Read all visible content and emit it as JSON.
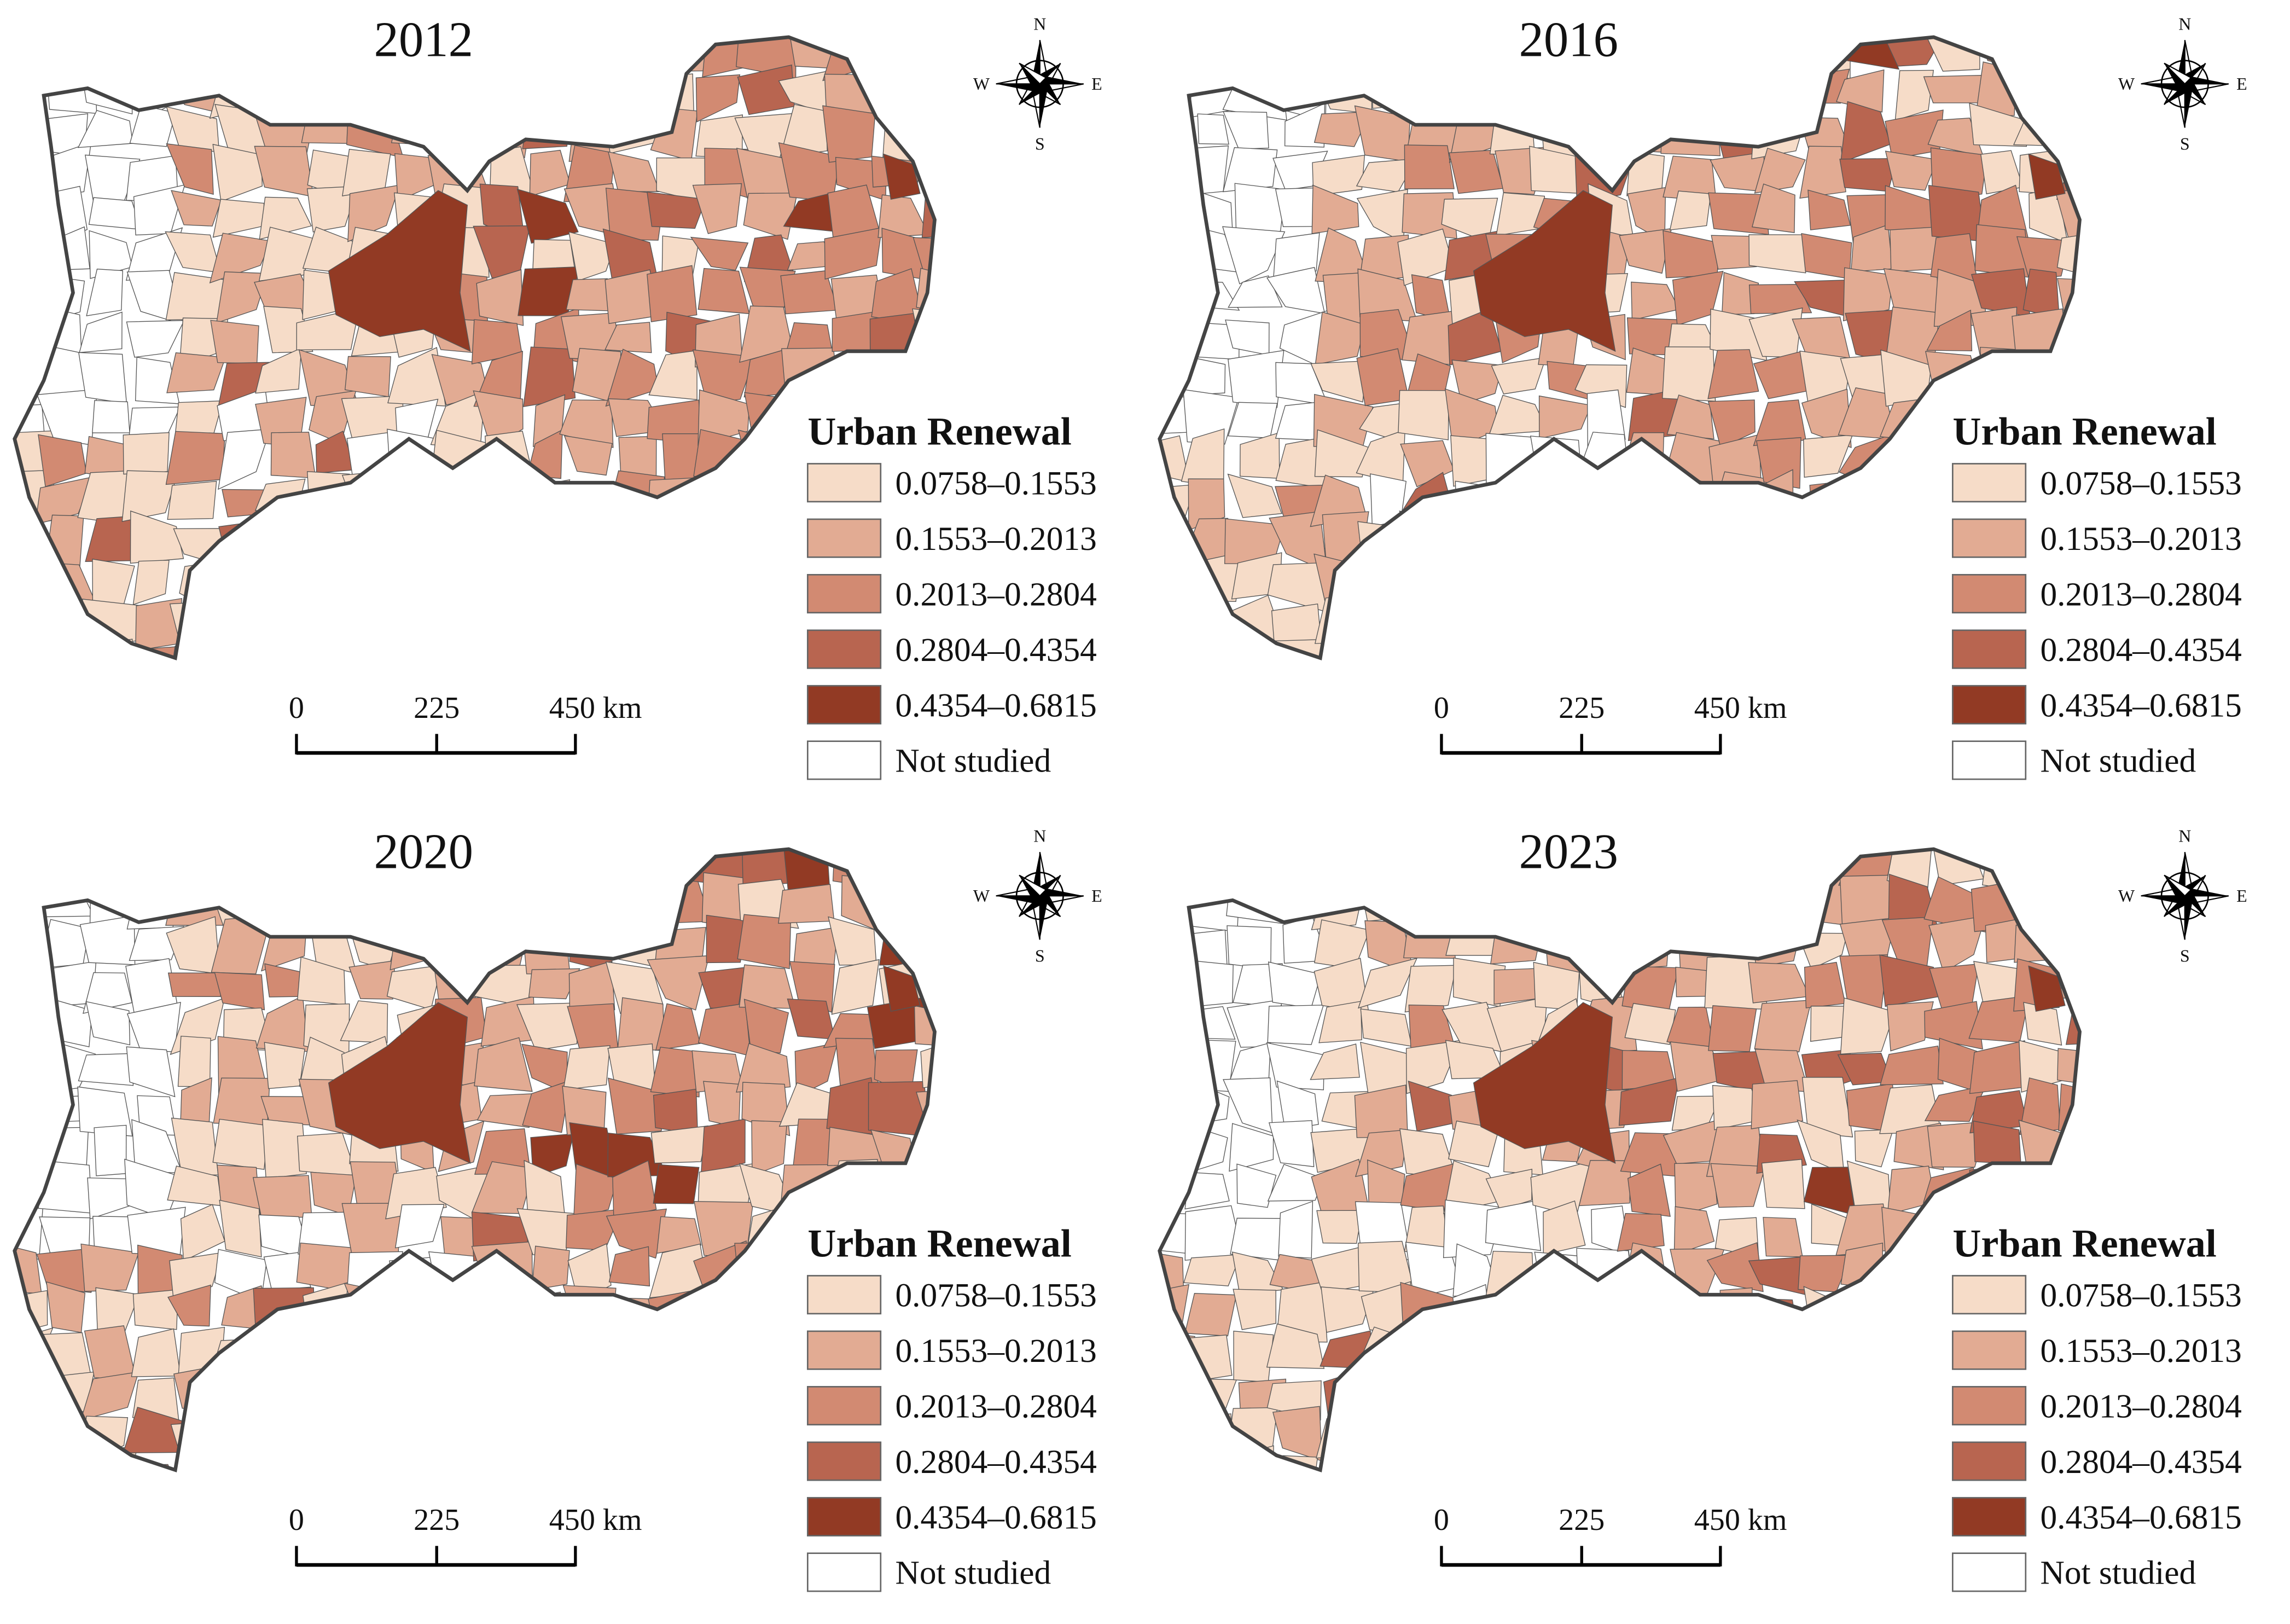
{
  "panels": [
    {
      "year": "2012",
      "legend": {
        "title": "Urban Renewal",
        "items": [
          {
            "label": "0.0758–0.1553",
            "color": "#f6dcc8"
          },
          {
            "label": "0.1553–0.2013",
            "color": "#e2ab93"
          },
          {
            "label": "0.2013–0.2804",
            "color": "#d28a72"
          },
          {
            "label": "0.2804–0.4354",
            "color": "#b86550"
          },
          {
            "label": "0.4354–0.6815",
            "color": "#923a24"
          },
          {
            "label": "Not studied",
            "color": "#ffffff"
          }
        ]
      },
      "scale_bar": [
        "0",
        "225",
        "450 km"
      ],
      "compass": [
        "N",
        "E",
        "S",
        "W"
      ]
    },
    {
      "year": "2016",
      "legend": {
        "title": "Urban Renewal",
        "items": [
          {
            "label": "0.0758–0.1553",
            "color": "#f6dcc8"
          },
          {
            "label": "0.1553–0.2013",
            "color": "#e2ab93"
          },
          {
            "label": "0.2013–0.2804",
            "color": "#d28a72"
          },
          {
            "label": "0.2804–0.4354",
            "color": "#b86550"
          },
          {
            "label": "0.4354–0.6815",
            "color": "#923a24"
          },
          {
            "label": "Not studied",
            "color": "#ffffff"
          }
        ]
      },
      "scale_bar": [
        "0",
        "225",
        "450 km"
      ],
      "compass": [
        "N",
        "E",
        "S",
        "W"
      ]
    },
    {
      "year": "2020",
      "legend": {
        "title": "Urban Renewal",
        "items": [
          {
            "label": "0.0758–0.1553",
            "color": "#f6dcc8"
          },
          {
            "label": "0.1553–0.2013",
            "color": "#e2ab93"
          },
          {
            "label": "0.2013–0.2804",
            "color": "#d28a72"
          },
          {
            "label": "0.2804–0.4354",
            "color": "#b86550"
          },
          {
            "label": "0.4354–0.6815",
            "color": "#923a24"
          },
          {
            "label": "Not studied",
            "color": "#ffffff"
          }
        ]
      },
      "scale_bar": [
        "0",
        "225",
        "450 km"
      ],
      "compass": [
        "N",
        "E",
        "S",
        "W"
      ]
    },
    {
      "year": "2023",
      "legend": {
        "title": "Urban Renewal",
        "items": [
          {
            "label": "0.0758–0.1553",
            "color": "#f6dcc8"
          },
          {
            "label": "0.1553–0.2013",
            "color": "#e2ab93"
          },
          {
            "label": "0.2013–0.2804",
            "color": "#d28a72"
          },
          {
            "label": "0.2804–0.4354",
            "color": "#b86550"
          },
          {
            "label": "0.4354–0.6815",
            "color": "#923a24"
          },
          {
            "label": "Not studied",
            "color": "#ffffff"
          }
        ]
      },
      "scale_bar": [
        "0",
        "225",
        "450 km"
      ],
      "compass": [
        "N",
        "E",
        "S",
        "W"
      ]
    }
  ]
}
